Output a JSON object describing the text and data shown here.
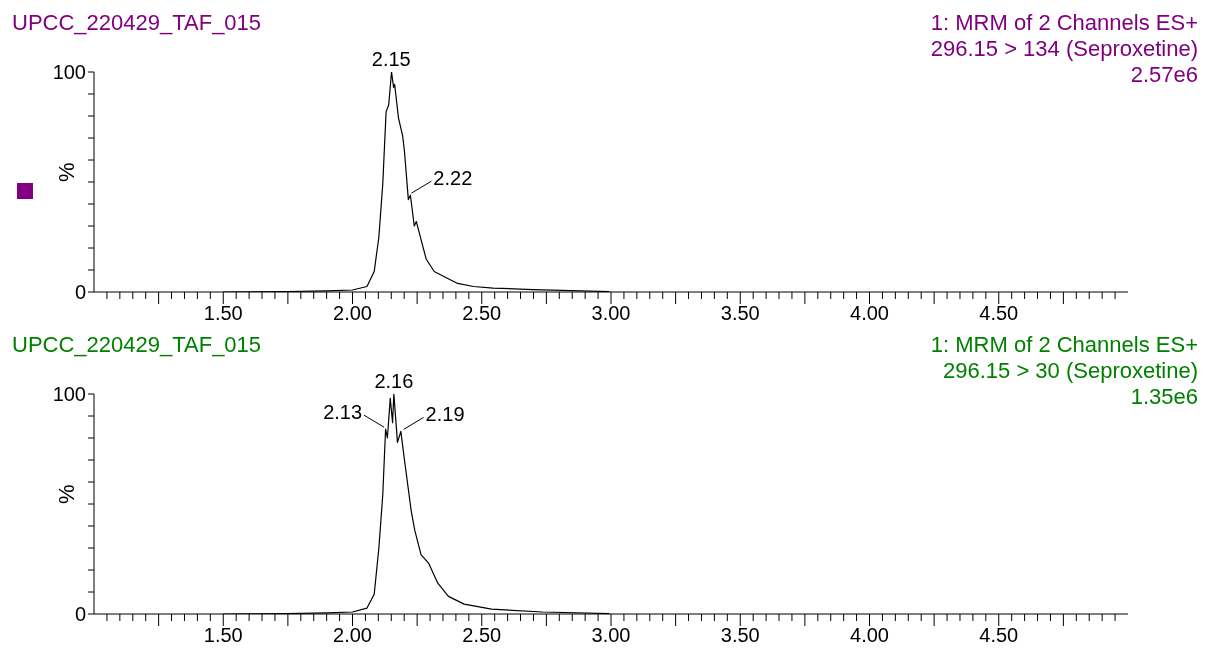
{
  "chart_data": [
    {
      "type": "line",
      "title": "UPCC_220429_TAF_015",
      "subtitle": "1: MRM of 2 Channels ES+\n296.15 > 134 (Seproxetine)\n2.57e6",
      "ylabel": "%",
      "xlim": [
        1,
        5
      ],
      "ylim": [
        0,
        100
      ],
      "yticks": [
        {
          "value": 0,
          "label": "0"
        },
        {
          "value": 10,
          "label": null
        },
        {
          "value": 20,
          "label": null
        },
        {
          "value": 30,
          "label": null
        },
        {
          "value": 40,
          "label": null
        },
        {
          "value": 50,
          "label": null
        },
        {
          "value": 60,
          "label": null
        },
        {
          "value": 70,
          "label": null
        },
        {
          "value": 80,
          "label": null
        },
        {
          "value": 90,
          "label": null
        },
        {
          "value": 100,
          "label": "100"
        }
      ],
      "xticks": [
        {
          "value": 1.05,
          "label": null
        },
        {
          "value": 1.1,
          "label": null
        },
        {
          "value": 1.15,
          "label": null
        },
        {
          "value": 1.2,
          "label": null
        },
        {
          "value": 1.25,
          "label": null
        },
        {
          "value": 1.3,
          "label": null
        },
        {
          "value": 1.35,
          "label": null
        },
        {
          "value": 1.4,
          "label": null
        },
        {
          "value": 1.45,
          "label": null
        },
        {
          "value": 1.5,
          "label": "1.50"
        },
        {
          "value": 1.55,
          "label": null
        },
        {
          "value": 1.6,
          "label": null
        },
        {
          "value": 1.65,
          "label": null
        },
        {
          "value": 1.7,
          "label": null
        },
        {
          "value": 1.75,
          "label": null
        },
        {
          "value": 1.8,
          "label": null
        },
        {
          "value": 1.85,
          "label": null
        },
        {
          "value": 1.9,
          "label": null
        },
        {
          "value": 1.95,
          "label": null
        },
        {
          "value": 2,
          "label": "2.00"
        },
        {
          "value": 2.05,
          "label": null
        },
        {
          "value": 2.1,
          "label": null
        },
        {
          "value": 2.15,
          "label": null
        },
        {
          "value": 2.2,
          "label": null
        },
        {
          "value": 2.25,
          "label": null
        },
        {
          "value": 2.3,
          "label": null
        },
        {
          "value": 2.35,
          "label": null
        },
        {
          "value": 2.4,
          "label": null
        },
        {
          "value": 2.45,
          "label": null
        },
        {
          "value": 2.5,
          "label": "2.50"
        },
        {
          "value": 2.55,
          "label": null
        },
        {
          "value": 2.6,
          "label": null
        },
        {
          "value": 2.65,
          "label": null
        },
        {
          "value": 2.7,
          "label": null
        },
        {
          "value": 2.75,
          "label": null
        },
        {
          "value": 2.8,
          "label": null
        },
        {
          "value": 2.85,
          "label": null
        },
        {
          "value": 2.9,
          "label": null
        },
        {
          "value": 2.95,
          "label": null
        },
        {
          "value": 3,
          "label": "3.00"
        },
        {
          "value": 3.05,
          "label": null
        },
        {
          "value": 3.1,
          "label": null
        },
        {
          "value": 3.15,
          "label": null
        },
        {
          "value": 3.2,
          "label": null
        },
        {
          "value": 3.25,
          "label": null
        },
        {
          "value": 3.3,
          "label": null
        },
        {
          "value": 3.35,
          "label": null
        },
        {
          "value": 3.4,
          "label": null
        },
        {
          "value": 3.45,
          "label": null
        },
        {
          "value": 3.5,
          "label": "3.50"
        },
        {
          "value": 3.55,
          "label": null
        },
        {
          "value": 3.6,
          "label": null
        },
        {
          "value": 3.65,
          "label": null
        },
        {
          "value": 3.7,
          "label": null
        },
        {
          "value": 3.75,
          "label": null
        },
        {
          "value": 3.8,
          "label": null
        },
        {
          "value": 3.85,
          "label": null
        },
        {
          "value": 3.9,
          "label": null
        },
        {
          "value": 3.95,
          "label": null
        },
        {
          "value": 4,
          "label": "4.00"
        },
        {
          "value": 4.05,
          "label": null
        },
        {
          "value": 4.1,
          "label": null
        },
        {
          "value": 4.15,
          "label": null
        },
        {
          "value": 4.2,
          "label": null
        },
        {
          "value": 4.25,
          "label": null
        },
        {
          "value": 4.3,
          "label": null
        },
        {
          "value": 4.35,
          "label": null
        },
        {
          "value": 4.4,
          "label": null
        },
        {
          "value": 4.45,
          "label": null
        },
        {
          "value": 4.5,
          "label": "4.50"
        },
        {
          "value": 4.55,
          "label": null
        },
        {
          "value": 4.6,
          "label": null
        },
        {
          "value": 4.65,
          "label": null
        },
        {
          "value": 4.7,
          "label": null
        },
        {
          "value": 4.75,
          "label": null
        },
        {
          "value": 4.8,
          "label": null
        },
        {
          "value": 4.85,
          "label": null
        },
        {
          "value": 4.9,
          "label": null
        },
        {
          "value": 4.95,
          "label": null
        }
      ],
      "series": [
        {
          "color": "#000000",
          "x": [
            1.5,
            1.75,
            1.9,
            2.0,
            2.056,
            2.084,
            2.102,
            2.117,
            2.13,
            2.14,
            2.151,
            2.159,
            2.163,
            2.178,
            2.194,
            2.201,
            2.216,
            2.224,
            2.239,
            2.247,
            2.267,
            2.285,
            2.316,
            2.361,
            2.407,
            2.468,
            2.544,
            2.697,
            2.994
          ],
          "values": [
            0,
            0.2,
            0.5,
            0.9,
            2.5,
            9.3,
            25,
            49,
            82,
            85,
            100,
            93,
            94.4,
            79,
            71,
            64,
            42,
            44,
            30,
            32,
            23,
            15,
            9.3,
            6.6,
            3.9,
            2.5,
            1.8,
            1.1,
            0.2
          ]
        }
      ],
      "annotations": [
        {
          "text": "2.15",
          "x": 2.15,
          "y": 100
        },
        {
          "text": "2.22",
          "x": 2.22,
          "y": 44
        }
      ]
    },
    {
      "type": "line",
      "title": "UPCC_220429_TAF_015",
      "subtitle": "1: MRM of 2 Channels ES+\n296.15 > 30 (Seproxetine)\n1.35e6",
      "ylabel": "%",
      "xlim": [
        1,
        5
      ],
      "ylim": [
        0,
        100
      ],
      "yticks": [
        {
          "value": 0,
          "label": "0"
        },
        {
          "value": 10,
          "label": null
        },
        {
          "value": 20,
          "label": null
        },
        {
          "value": 30,
          "label": null
        },
        {
          "value": 40,
          "label": null
        },
        {
          "value": 50,
          "label": null
        },
        {
          "value": 60,
          "label": null
        },
        {
          "value": 70,
          "label": null
        },
        {
          "value": 80,
          "label": null
        },
        {
          "value": 90,
          "label": null
        },
        {
          "value": 100,
          "label": "100"
        }
      ],
      "xticks": [
        {
          "value": 1.05,
          "label": null
        },
        {
          "value": 1.1,
          "label": null
        },
        {
          "value": 1.15,
          "label": null
        },
        {
          "value": 1.2,
          "label": null
        },
        {
          "value": 1.25,
          "label": null
        },
        {
          "value": 1.3,
          "label": null
        },
        {
          "value": 1.35,
          "label": null
        },
        {
          "value": 1.4,
          "label": null
        },
        {
          "value": 1.45,
          "label": null
        },
        {
          "value": 1.5,
          "label": "1.50"
        },
        {
          "value": 1.55,
          "label": null
        },
        {
          "value": 1.6,
          "label": null
        },
        {
          "value": 1.65,
          "label": null
        },
        {
          "value": 1.7,
          "label": null
        },
        {
          "value": 1.75,
          "label": null
        },
        {
          "value": 1.8,
          "label": null
        },
        {
          "value": 1.85,
          "label": null
        },
        {
          "value": 1.9,
          "label": null
        },
        {
          "value": 1.95,
          "label": null
        },
        {
          "value": 2,
          "label": "2.00"
        },
        {
          "value": 2.05,
          "label": null
        },
        {
          "value": 2.1,
          "label": null
        },
        {
          "value": 2.15,
          "label": null
        },
        {
          "value": 2.2,
          "label": null
        },
        {
          "value": 2.25,
          "label": null
        },
        {
          "value": 2.3,
          "label": null
        },
        {
          "value": 2.35,
          "label": null
        },
        {
          "value": 2.4,
          "label": null
        },
        {
          "value": 2.45,
          "label": null
        },
        {
          "value": 2.5,
          "label": "2.50"
        },
        {
          "value": 2.55,
          "label": null
        },
        {
          "value": 2.6,
          "label": null
        },
        {
          "value": 2.65,
          "label": null
        },
        {
          "value": 2.7,
          "label": null
        },
        {
          "value": 2.75,
          "label": null
        },
        {
          "value": 2.8,
          "label": null
        },
        {
          "value": 2.85,
          "label": null
        },
        {
          "value": 2.9,
          "label": null
        },
        {
          "value": 2.95,
          "label": null
        },
        {
          "value": 3,
          "label": "3.00"
        },
        {
          "value": 3.05,
          "label": null
        },
        {
          "value": 3.1,
          "label": null
        },
        {
          "value": 3.15,
          "label": null
        },
        {
          "value": 3.2,
          "label": null
        },
        {
          "value": 3.25,
          "label": null
        },
        {
          "value": 3.3,
          "label": null
        },
        {
          "value": 3.35,
          "label": null
        },
        {
          "value": 3.4,
          "label": null
        },
        {
          "value": 3.45,
          "label": null
        },
        {
          "value": 3.5,
          "label": "3.50"
        },
        {
          "value": 3.55,
          "label": null
        },
        {
          "value": 3.6,
          "label": null
        },
        {
          "value": 3.65,
          "label": null
        },
        {
          "value": 3.7,
          "label": null
        },
        {
          "value": 3.75,
          "label": null
        },
        {
          "value": 3.8,
          "label": null
        },
        {
          "value": 3.85,
          "label": null
        },
        {
          "value": 3.9,
          "label": null
        },
        {
          "value": 3.95,
          "label": null
        },
        {
          "value": 4,
          "label": "4.00"
        },
        {
          "value": 4.05,
          "label": null
        },
        {
          "value": 4.1,
          "label": null
        },
        {
          "value": 4.15,
          "label": null
        },
        {
          "value": 4.2,
          "label": null
        },
        {
          "value": 4.25,
          "label": null
        },
        {
          "value": 4.3,
          "label": null
        },
        {
          "value": 4.35,
          "label": null
        },
        {
          "value": 4.4,
          "label": null
        },
        {
          "value": 4.45,
          "label": null
        },
        {
          "value": 4.5,
          "label": "4.50"
        },
        {
          "value": 4.55,
          "label": null
        },
        {
          "value": 4.6,
          "label": null
        },
        {
          "value": 4.65,
          "label": null
        },
        {
          "value": 4.7,
          "label": null
        },
        {
          "value": 4.75,
          "label": null
        },
        {
          "value": 4.8,
          "label": null
        },
        {
          "value": 4.85,
          "label": null
        },
        {
          "value": 4.9,
          "label": null
        },
        {
          "value": 4.95,
          "label": null
        }
      ],
      "series": [
        {
          "color": "#000000",
          "x": [
            1.5,
            1.75,
            1.9,
            2.0,
            2.056,
            2.084,
            2.102,
            2.117,
            2.128,
            2.135,
            2.146,
            2.155,
            2.16,
            2.174,
            2.187,
            2.201,
            2.227,
            2.241,
            2.265,
            2.295,
            2.33,
            2.371,
            2.432,
            2.538,
            2.735,
            2.994
          ],
          "values": [
            0,
            0.2,
            0.5,
            0.9,
            2.7,
            9,
            30,
            54,
            84,
            80,
            98,
            87,
            100,
            78,
            83,
            70,
            47,
            38,
            27,
            23,
            14,
            8,
            4.5,
            2.2,
            0.9,
            0.2
          ]
        }
      ],
      "annotations": [
        {
          "text": "2.13",
          "x": 2.13,
          "y": 84
        },
        {
          "text": "2.16",
          "x": 2.16,
          "y": 100
        },
        {
          "text": "2.19",
          "x": 2.19,
          "y": 83
        }
      ]
    }
  ]
}
